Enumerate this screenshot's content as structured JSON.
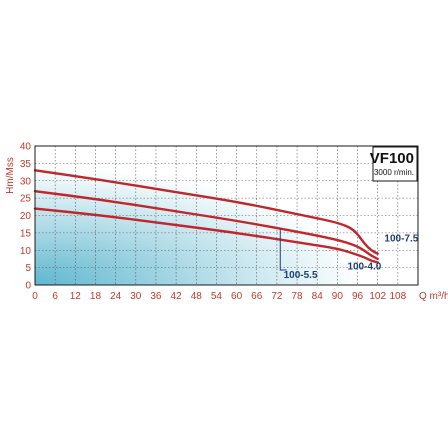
{
  "chart_data": {
    "type": "line",
    "title": "VF100",
    "subtitle": "3000 r/min.",
    "ylabel": "Hm/Mss",
    "xlabel": "Q m³/h",
    "xlim": [
      0,
      114
    ],
    "ylim": [
      0,
      40
    ],
    "x_ticks": [
      "0",
      "6",
      "12",
      "18",
      "24",
      "30",
      "36",
      "42",
      "48",
      "54",
      "60",
      "66",
      "72",
      "78",
      "84",
      "90",
      "96",
      "102",
      "108"
    ],
    "y_ticks": [
      "0",
      "5",
      "10",
      "15",
      "20",
      "25",
      "30",
      "35",
      "40"
    ],
    "grid": true,
    "series": [
      {
        "name": "100-7.5",
        "color": "#c0262c",
        "points": [
          [
            0,
            33
          ],
          [
            20,
            30.2
          ],
          [
            40,
            27
          ],
          [
            60,
            24
          ],
          [
            80,
            20
          ],
          [
            90,
            18
          ],
          [
            95,
            16
          ],
          [
            98,
            12
          ],
          [
            100,
            10
          ],
          [
            102,
            9
          ]
        ]
      },
      {
        "name": "100-5.5",
        "color": "#c0262c",
        "points": [
          [
            0,
            27
          ],
          [
            20,
            24.5
          ],
          [
            40,
            21.5
          ],
          [
            60,
            18.5
          ],
          [
            80,
            15
          ],
          [
            90,
            13
          ],
          [
            95,
            11.5
          ],
          [
            98,
            10
          ],
          [
            100,
            8.5
          ],
          [
            102,
            7.5
          ]
        ]
      },
      {
        "name": "100-4.0",
        "color": "#c0262c",
        "points": [
          [
            0,
            22
          ],
          [
            20,
            20
          ],
          [
            40,
            17.5
          ],
          [
            60,
            15
          ],
          [
            80,
            12
          ],
          [
            90,
            10.5
          ],
          [
            95,
            9
          ],
          [
            98,
            8
          ],
          [
            100,
            7
          ],
          [
            102,
            6.5
          ]
        ]
      }
    ],
    "annotations": [
      {
        "text": "100-7.5",
        "x": 104,
        "y": 12.5,
        "pointer": null
      },
      {
        "text": "100-4.0",
        "x": 93,
        "y": 4.5,
        "pointer": null
      },
      {
        "text": "100-5.5",
        "x": 74,
        "y": 2,
        "pointer": [
          73,
          16
        ]
      }
    ]
  },
  "colors": {
    "axis": "#1a1a1a",
    "grid": "#555555",
    "tick_text": "#c0392b",
    "label_text": "#1f3f70",
    "curve": "#c0262c",
    "gradient_start": "#5fb7cf",
    "gradient_end": "#ffffff"
  }
}
